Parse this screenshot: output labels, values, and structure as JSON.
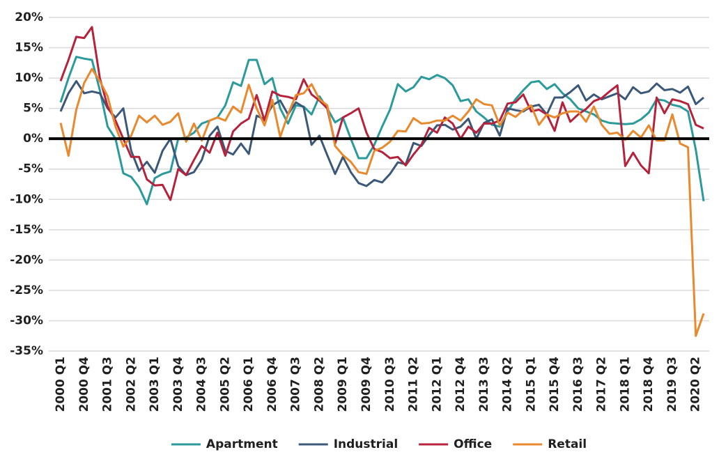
{
  "chart_data": {
    "type": "line",
    "categories": [
      "2000 Q1",
      null,
      null,
      "2000 Q4",
      null,
      null,
      "2001 Q3",
      null,
      null,
      "2002 Q2",
      null,
      null,
      "2003 Q1",
      null,
      null,
      "2003 Q4",
      null,
      null,
      "2004 Q3",
      null,
      null,
      "2005 Q2",
      null,
      null,
      "2006 Q1",
      null,
      null,
      "2006 Q4",
      null,
      null,
      "2007 Q3",
      null,
      null,
      "2008 Q2",
      null,
      null,
      "2009 Q1",
      null,
      null,
      "2009 Q4",
      null,
      null,
      "2010 Q3",
      null,
      null,
      "2011 Q2",
      null,
      null,
      "2012 Q1",
      null,
      null,
      "2012 Q4",
      null,
      null,
      "2013 Q3",
      null,
      null,
      "2014 Q2",
      null,
      null,
      "2015 Q1",
      null,
      null,
      "2015 Q4",
      null,
      null,
      "2016 Q3",
      null,
      null,
      "2017 Q2",
      null,
      null,
      "2018 Q1",
      null,
      null,
      "2018 Q4",
      null,
      null,
      "2019 Q3",
      null,
      null,
      "2020 Q2",
      null
    ],
    "series": [
      {
        "name": "Apartment",
        "color": "#2a9a9b",
        "values": [
          6,
          10,
          13.5,
          13.2,
          13,
          8,
          2,
          0,
          -5.7,
          -6.3,
          -8,
          -10.8,
          -6.5,
          -5.8,
          -5.4,
          0,
          0.2,
          1,
          2.5,
          3,
          3.5,
          5.5,
          9.3,
          8.7,
          13,
          13,
          9,
          10,
          5,
          2.5,
          5.5,
          5.3,
          4,
          7,
          5,
          2.7,
          3.5,
          0,
          -3.2,
          -3.2,
          -1,
          2,
          4.8,
          9,
          7.8,
          8.5,
          10.2,
          9.8,
          10.5,
          10,
          8.8,
          6.2,
          6.5,
          4.5,
          3.5,
          2.3,
          2,
          4.5,
          6.5,
          8,
          9.3,
          9.5,
          8.2,
          9,
          7.5,
          6.5,
          5,
          4.5,
          4,
          3,
          2.6,
          2.5,
          2.4,
          2.5,
          3.2,
          4.3,
          6.5,
          6.3,
          5.6,
          5.3,
          4.5,
          -1.8,
          -10.3
        ]
      },
      {
        "name": "Industrial",
        "color": "#3b5878",
        "values": [
          4.5,
          7.5,
          9.5,
          7.5,
          7.8,
          7.5,
          5,
          3.5,
          5,
          -2,
          -5.3,
          -3.8,
          -5.6,
          -2,
          0,
          -4.5,
          -6,
          -5.5,
          -3.5,
          0.5,
          2,
          -2,
          -2.6,
          -0.8,
          -2.5,
          3.8,
          3.2,
          5.5,
          6.3,
          4,
          6,
          5.2,
          -1,
          0.5,
          -2.7,
          -5.8,
          -3,
          -5.5,
          -7.3,
          -7.8,
          -6.8,
          -7.2,
          -5.8,
          -3.9,
          -4.2,
          -0.7,
          -1.2,
          0.6,
          2.2,
          2.3,
          1.5,
          2,
          3.3,
          0,
          2.6,
          3.2,
          0.5,
          5,
          4.7,
          4.5,
          5.3,
          5.6,
          4,
          6.8,
          6.8,
          7.7,
          8.8,
          6.3,
          7.3,
          6.5,
          7,
          7.5,
          6.5,
          8.5,
          7.5,
          7.8,
          9.1,
          8,
          8.2,
          7.6,
          8.6,
          5.7,
          6.8
        ]
      },
      {
        "name": "Office",
        "color": "#b5223b",
        "values": [
          9.5,
          13,
          16.8,
          16.6,
          18.4,
          10,
          5.3,
          3,
          0,
          -3,
          -3,
          -6.7,
          -7.7,
          -7.6,
          -10.1,
          -5,
          -6,
          -3.5,
          -1.2,
          -2.3,
          1,
          -2.8,
          1.2,
          2.5,
          3.3,
          7.2,
          3,
          7.8,
          7.1,
          6.9,
          6.5,
          9.8,
          7.3,
          6.3,
          5,
          -0.8,
          3.5,
          4.2,
          5,
          1,
          -1.7,
          -2.2,
          -3.2,
          -3,
          -4.4,
          -2.6,
          -1,
          1.8,
          1,
          3.5,
          2.5,
          0,
          2,
          1,
          2.5,
          2.5,
          3,
          5.8,
          6,
          7.3,
          4.5,
          4.8,
          4,
          1.3,
          6,
          2.8,
          4,
          4.9,
          6.2,
          6.7,
          7.8,
          8.8,
          -4.5,
          -2.3,
          -4.4,
          -5.7,
          6.8,
          4.2,
          6.5,
          6.2,
          5.7,
          2.3,
          1.7
        ]
      },
      {
        "name": "Retail",
        "color": "#e8892e",
        "values": [
          2.6,
          -2.8,
          4.8,
          9.2,
          11.5,
          9.5,
          7,
          2,
          -1.3,
          0.5,
          3.8,
          2.7,
          3.8,
          2.3,
          2.8,
          4.2,
          -0.5,
          2.5,
          -0.3,
          3,
          3.5,
          3,
          5.3,
          4.3,
          8.9,
          5,
          2.2,
          6.4,
          0.3,
          4,
          7.2,
          7.5,
          9,
          6.5,
          5.5,
          -1.2,
          -2.7,
          -3.8,
          -5.5,
          -5.8,
          -2,
          -1.5,
          -0.5,
          1.3,
          1.2,
          3.4,
          2.5,
          2.6,
          3,
          3,
          3.8,
          3,
          4.5,
          6.5,
          5.7,
          5.5,
          2.2,
          4.3,
          3.6,
          4.7,
          5.5,
          2.3,
          4,
          3.5,
          4.2,
          4.5,
          4.5,
          2.8,
          5.3,
          2.3,
          0.8,
          1,
          -0.2,
          1.3,
          0.2,
          2.2,
          -0.3,
          -0.3,
          4,
          -0.8,
          -1.4,
          -32.5,
          -28.8
        ]
      }
    ],
    "ylim": [
      -35,
      20
    ],
    "yticks": [
      {
        "value": -35,
        "label": "-35%"
      },
      {
        "value": -30,
        "label": "-30%"
      },
      {
        "value": -25,
        "label": "-25%"
      },
      {
        "value": -20,
        "label": "-20%"
      },
      {
        "value": -15,
        "label": "-15%"
      },
      {
        "value": -10,
        "label": "-10%"
      },
      {
        "value": -5,
        "label": "-5%"
      },
      {
        "value": 0,
        "label": "0%"
      },
      {
        "value": 5,
        "label": "5%"
      },
      {
        "value": 10,
        "label": "10%"
      },
      {
        "value": 15,
        "label": "15%"
      },
      {
        "value": 20,
        "label": "20%"
      }
    ],
    "grid": true,
    "legend": "bottom"
  }
}
